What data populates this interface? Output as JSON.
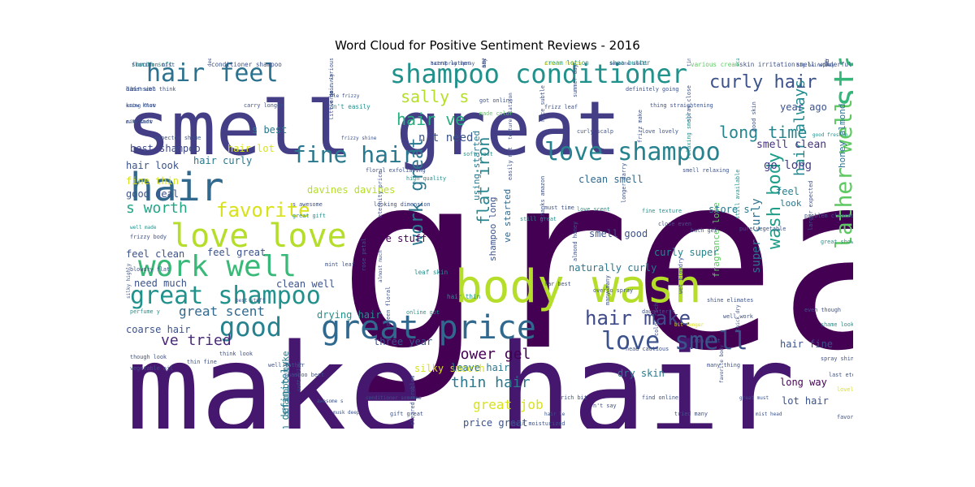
{
  "chart_data": {
    "type": "wordcloud",
    "title": "Word Cloud for Positive Sentiment Reviews - 2016",
    "words": [
      {
        "text": "great",
        "weight": 100,
        "color": "#440154"
      },
      {
        "text": "make hair",
        "weight": 92,
        "color": "#46176e"
      },
      {
        "text": "smell great",
        "weight": 72,
        "color": "#433e85"
      },
      {
        "text": "body wash",
        "weight": 48,
        "color": "#b5de2b"
      },
      {
        "text": "hair",
        "weight": 38,
        "color": "#31688e"
      },
      {
        "text": "shampoo conditioner",
        "weight": 30,
        "color": "#21918c"
      },
      {
        "text": "started using",
        "weight": 30,
        "color": "#35b779"
      },
      {
        "text": "great price",
        "weight": 26,
        "color": "#31688e"
      },
      {
        "text": "love love",
        "weight": 26,
        "color": "#b5de2b"
      },
      {
        "text": "work well",
        "weight": 24,
        "color": "#38b977"
      },
      {
        "text": "hair feel",
        "weight": 22,
        "color": "#2c728e"
      },
      {
        "text": "love shampoo",
        "weight": 22,
        "color": "#26828e"
      },
      {
        "text": "fine hair",
        "weight": 20,
        "color": "#2a788e"
      },
      {
        "text": "great shampoo",
        "weight": 20,
        "color": "#21918c"
      },
      {
        "text": "lather well",
        "weight": 22,
        "color": "#5ec962"
      },
      {
        "text": "love smell",
        "weight": 20,
        "color": "#3b528b"
      },
      {
        "text": "good",
        "weight": 22,
        "color": "#26828e"
      },
      {
        "text": "work great",
        "weight": 16,
        "color": "#2a788e"
      },
      {
        "text": "hair make",
        "weight": 16,
        "color": "#3e4a89"
      },
      {
        "text": "wash body",
        "weight": 16,
        "color": "#1f9e89"
      },
      {
        "text": "favorite",
        "weight": 18,
        "color": "#d8e219"
      },
      {
        "text": "curly hair",
        "weight": 14,
        "color": "#3b528b"
      },
      {
        "text": "long time",
        "weight": 14,
        "color": "#25858e"
      },
      {
        "text": "flat iron",
        "weight": 12,
        "color": "#25858e"
      },
      {
        "text": "s worth",
        "weight": 13,
        "color": "#21a685"
      },
      {
        "text": "sally s",
        "weight": 14,
        "color": "#b5de2b"
      },
      {
        "text": "hair ve",
        "weight": 14,
        "color": "#27ad81"
      },
      {
        "text": "hair always",
        "weight": 13,
        "color": "#23898e"
      },
      {
        "text": "shower gel",
        "weight": 13,
        "color": "#440154"
      },
      {
        "text": "thin hair",
        "weight": 13,
        "color": "#2a788e"
      },
      {
        "text": "great job",
        "weight": 12,
        "color": "#d8e219"
      },
      {
        "text": "ve tried",
        "weight": 13,
        "color": "#482878"
      },
      {
        "text": "great scent",
        "weight": 12,
        "color": "#31688e"
      },
      {
        "text": "super curly",
        "weight": 10,
        "color": "#2c728e"
      },
      {
        "text": "n't need",
        "weight": 10,
        "color": "#3b528b"
      },
      {
        "text": "smell clean",
        "weight": 9,
        "color": "#46337e"
      },
      {
        "text": "best shampoo",
        "weight": 8,
        "color": "#3e4a89"
      },
      {
        "text": "hair lot",
        "weight": 8,
        "color": "#d8e219"
      },
      {
        "text": "hair curly",
        "weight": 8,
        "color": "#2a788e"
      },
      {
        "text": "hair look",
        "weight": 8,
        "color": "#3b528b"
      },
      {
        "text": "fine thin",
        "weight": 8,
        "color": "#d8e219"
      },
      {
        "text": "good deal",
        "weight": 8,
        "color": "#3b528b"
      },
      {
        "text": "davines davines",
        "weight": 8,
        "color": "#b5de2b"
      },
      {
        "text": "clean smell",
        "weight": 8,
        "color": "#31688e"
      },
      {
        "text": "go long",
        "weight": 9,
        "color": "#433e85"
      },
      {
        "text": "year ago",
        "weight": 8,
        "color": "#3b528b"
      },
      {
        "text": "honey almond",
        "weight": 7,
        "color": "#2c728e"
      },
      {
        "text": "fragrance love",
        "weight": 7,
        "color": "#5ec962"
      },
      {
        "text": "feel",
        "weight": 8,
        "color": "#26828e"
      },
      {
        "text": "look",
        "weight": 7,
        "color": "#2a788e"
      },
      {
        "text": "store s",
        "weight": 8,
        "color": "#2a788e"
      },
      {
        "text": "smell good",
        "weight": 8,
        "color": "#3b528b"
      },
      {
        "text": "love stuff",
        "weight": 7,
        "color": "#440154"
      },
      {
        "text": "feel clean",
        "weight": 8,
        "color": "#3b528b"
      },
      {
        "text": "feel great",
        "weight": 8,
        "color": "#3b528b"
      },
      {
        "text": "need much",
        "weight": 8,
        "color": "#3b528b"
      },
      {
        "text": "clean well",
        "weight": 8,
        "color": "#3b528b"
      },
      {
        "text": "drying hair",
        "weight": 8,
        "color": "#21918c"
      },
      {
        "text": "coarse hair",
        "weight": 8,
        "color": "#3b528b"
      },
      {
        "text": "naturally curly",
        "weight": 8,
        "color": "#2a788e"
      },
      {
        "text": "curly super",
        "weight": 8,
        "color": "#25858e"
      },
      {
        "text": "hair fine",
        "weight": 8,
        "color": "#3b528b"
      },
      {
        "text": "silky smooth",
        "weight": 8,
        "color": "#d8e219"
      },
      {
        "text": "three year",
        "weight": 8,
        "color": "#3b528b"
      },
      {
        "text": "leave hair",
        "weight": 8,
        "color": "#2a788e"
      },
      {
        "text": "dry skin",
        "weight": 8,
        "color": "#2a788e"
      },
      {
        "text": "long way",
        "weight": 8,
        "color": "#440154"
      },
      {
        "text": "lot hair",
        "weight": 8,
        "color": "#3b528b"
      },
      {
        "text": "price great",
        "weight": 8,
        "color": "#3b528b"
      },
      {
        "text": "m definitely",
        "weight": 8,
        "color": "#2a788e"
      },
      {
        "text": "shampoo make",
        "weight": 7,
        "color": "#2a788e"
      },
      {
        "text": "ve started",
        "weight": 7,
        "color": "#31688e"
      },
      {
        "text": "shampoo long",
        "weight": 7,
        "color": "#3b528b"
      },
      {
        "text": "using started",
        "weight": 7,
        "color": "#2a788e"
      },
      {
        "text": "s best",
        "weight": 8,
        "color": "#2a788e"
      },
      {
        "text": "smooth soft",
        "weight": 5,
        "color": "#21918c"
      },
      {
        "text": "conditioner shampoo",
        "weight": 5,
        "color": "#3b528b"
      },
      {
        "text": "scent lather",
        "weight": 4,
        "color": "#3b528b"
      },
      {
        "text": "amazon thank",
        "weight": 5,
        "color": "#3b528b"
      },
      {
        "text": "cream lotion",
        "weight": 5,
        "color": "#21918c"
      },
      {
        "text": "shea butter",
        "weight": 5,
        "color": "#21918c"
      },
      {
        "text": "various cream",
        "weight": 5,
        "color": "#5ec962"
      },
      {
        "text": "skin irritation",
        "weight": 5,
        "color": "#3b528b"
      },
      {
        "text": "smell wonderful",
        "weight": 5,
        "color": "#3b528b"
      },
      {
        "text": "well tried",
        "weight": 5,
        "color": "#3b528b"
      },
      {
        "text": "hair wet",
        "weight": 5,
        "color": "#3b528b"
      },
      {
        "text": "know know",
        "weight": 4,
        "color": "#3b528b"
      },
      {
        "text": "n't know",
        "weight": 4,
        "color": "#3b528b"
      },
      {
        "text": "hair various",
        "weight": 4,
        "color": "#3b528b"
      },
      {
        "text": "n't easily",
        "weight": 5,
        "color": "#21918c"
      },
      {
        "text": "little go",
        "weight": 4,
        "color": "#3b528b"
      },
      {
        "text": "got online",
        "weight": 4,
        "color": "#3b528b"
      },
      {
        "text": "made color",
        "weight": 4,
        "color": "#5ec962"
      },
      {
        "text": "frizz leaf",
        "weight": 4,
        "color": "#3b528b"
      },
      {
        "text": "nice subtle",
        "weight": 4,
        "color": "#3b528b"
      },
      {
        "text": "summer day",
        "weight": 4,
        "color": "#3b528b"
      },
      {
        "text": "curly scalp",
        "weight": 4,
        "color": "#3b528b"
      },
      {
        "text": "love lovely",
        "weight": 4,
        "color": "#3b528b"
      },
      {
        "text": "frizz make",
        "weight": 4,
        "color": "#3b528b"
      },
      {
        "text": "spray close",
        "weight": 4,
        "color": "#3b528b"
      },
      {
        "text": "relaxing smell",
        "weight": 4,
        "color": "#21918c"
      },
      {
        "text": "smell relaxing",
        "weight": 4,
        "color": "#3b528b"
      },
      {
        "text": "good skin",
        "weight": 4,
        "color": "#3b528b"
      },
      {
        "text": "good freshen",
        "weight": 3,
        "color": "#21918c"
      },
      {
        "text": "well made",
        "weight": 3,
        "color": "#21918c"
      },
      {
        "text": "frizzy body",
        "weight": 4,
        "color": "#3b528b"
      },
      {
        "text": "s awesome",
        "weight": 4,
        "color": "#3b528b"
      },
      {
        "text": "great gift",
        "weight": 4,
        "color": "#21918c"
      },
      {
        "text": "looking dimension",
        "weight": 4,
        "color": "#3b528b"
      },
      {
        "text": "eternity price",
        "weight": 4,
        "color": "#3b528b"
      },
      {
        "text": "must time",
        "weight": 4,
        "color": "#3b528b"
      },
      {
        "text": "thanks amazon",
        "weight": 4,
        "color": "#3b528b"
      },
      {
        "text": "love scent",
        "weight": 4,
        "color": "#21918c"
      },
      {
        "text": "longer carry",
        "weight": 4,
        "color": "#3b528b"
      },
      {
        "text": "fine texture",
        "weight": 4,
        "color": "#21918c"
      },
      {
        "text": "close even",
        "weight": 4,
        "color": "#3b528b"
      },
      {
        "text": "bath gel",
        "weight": 4,
        "color": "#3b528b"
      },
      {
        "text": "still available",
        "weight": 4,
        "color": "#21918c"
      },
      {
        "text": "pure vegetable",
        "weight": 4,
        "color": "#3b528b"
      },
      {
        "text": "problem cleared",
        "weight": 4,
        "color": "#3b528b"
      },
      {
        "text": "larger expected",
        "weight": 4,
        "color": "#3b528b"
      },
      {
        "text": "great shower",
        "weight": 4,
        "color": "#21918c"
      },
      {
        "text": "blowdry flat",
        "weight": 4,
        "color": "#3b528b"
      },
      {
        "text": "silky highly",
        "weight": 3,
        "color": "#3b528b"
      },
      {
        "text": "perfume y",
        "weight": 4,
        "color": "#21918c"
      },
      {
        "text": "best stuff",
        "weight": 3,
        "color": "#3b528b"
      },
      {
        "text": "mint leaf",
        "weight": 4,
        "color": "#3b528b"
      },
      {
        "text": "rose petal",
        "weight": 4,
        "color": "#3b528b"
      },
      {
        "text": "almost much",
        "weight": 3,
        "color": "#3b528b"
      },
      {
        "text": "leaf skin",
        "weight": 5,
        "color": "#21918c"
      },
      {
        "text": "hair thin",
        "weight": 5,
        "color": "#21918c"
      },
      {
        "text": "overdo spray",
        "weight": 4,
        "color": "#3b528b"
      },
      {
        "text": "many many",
        "weight": 4,
        "color": "#3b528b"
      },
      {
        "text": "daughter s",
        "weight": 4,
        "color": "#3b528b"
      },
      {
        "text": "bit longer",
        "weight": 3,
        "color": "#d8e219"
      },
      {
        "text": "color rich",
        "weight": 4,
        "color": "#3b528b"
      },
      {
        "text": "iron flat",
        "weight": 4,
        "color": "#3b528b"
      },
      {
        "text": "well work",
        "weight": 4,
        "color": "#3b528b"
      },
      {
        "text": "thick dry",
        "weight": 3,
        "color": "#3b528b"
      },
      {
        "text": "even though",
        "weight": 4,
        "color": "#3b528b"
      },
      {
        "text": "shame looking",
        "weight": 4,
        "color": "#21918c"
      },
      {
        "text": "though look",
        "weight": 4,
        "color": "#3b528b"
      },
      {
        "text": "vegetable oil",
        "weight": 4,
        "color": "#3b528b"
      },
      {
        "text": "thin fine",
        "weight": 4,
        "color": "#3b528b"
      },
      {
        "text": "think look",
        "weight": 4,
        "color": "#3b528b"
      },
      {
        "text": "well lather",
        "weight": 4,
        "color": "#3b528b"
      },
      {
        "text": "shampoo best",
        "weight": 4,
        "color": "#3b528b"
      },
      {
        "text": "soft silky",
        "weight": 3,
        "color": "#3b528b"
      },
      {
        "text": "awesome s",
        "weight": 3,
        "color": "#3b528b"
      },
      {
        "text": "musk deep",
        "weight": 3,
        "color": "#3b528b"
      },
      {
        "text": "conditioner someone",
        "weight": 3,
        "color": "#3b528b"
      },
      {
        "text": "gift great",
        "weight": 4,
        "color": "#3b528b"
      },
      {
        "text": "cleared problem",
        "weight": 4,
        "color": "#3b528b"
      },
      {
        "text": "hair moisturized",
        "weight": 4,
        "color": "#3b528b"
      },
      {
        "text": "hair le",
        "weight": 3,
        "color": "#3b528b"
      },
      {
        "text": "rich bit",
        "weight": 4,
        "color": "#3b528b"
      },
      {
        "text": "n't say",
        "weight": 4,
        "color": "#3b528b"
      },
      {
        "text": "find online",
        "weight": 4,
        "color": "#3b528b"
      },
      {
        "text": "tried many",
        "weight": 4,
        "color": "#3b528b"
      },
      {
        "text": "many thing",
        "weight": 4,
        "color": "#3b528b"
      },
      {
        "text": "favorite body",
        "weight": 3,
        "color": "#3b528b"
      },
      {
        "text": "great must",
        "weight": 3,
        "color": "#3b528b"
      },
      {
        "text": "mist head",
        "weight": 3,
        "color": "#3b528b"
      },
      {
        "text": "spray shine",
        "weight": 4,
        "color": "#3b528b"
      },
      {
        "text": "last eternity",
        "weight": 4,
        "color": "#3b528b"
      },
      {
        "text": "lovely daughter",
        "weight": 4,
        "color": "#d8e219"
      },
      {
        "text": "favorite shampoo",
        "weight": 4,
        "color": "#3b528b"
      },
      {
        "text": "shine elimates",
        "weight": 4,
        "color": "#3b528b"
      },
      {
        "text": "head cautious",
        "weight": 4,
        "color": "#3b528b"
      },
      {
        "text": "wet blowdry",
        "weight": 4,
        "color": "#3b528b"
      },
      {
        "text": "almond honey",
        "weight": 4,
        "color": "#3b528b"
      },
      {
        "text": "far best",
        "weight": 4,
        "color": "#3b528b"
      },
      {
        "text": "still great",
        "weight": 4,
        "color": "#21918c"
      },
      {
        "text": "easily n't",
        "weight": 4,
        "color": "#3b528b"
      },
      {
        "text": "high quality",
        "weight": 4,
        "color": "#21918c"
      },
      {
        "text": "floral exfoliating",
        "weight": 4,
        "color": "#3b528b"
      },
      {
        "text": "thing straightening",
        "weight": 4,
        "color": "#3b528b"
      },
      {
        "text": "definitely going",
        "weight": 4,
        "color": "#3b528b"
      },
      {
        "text": "texture flatiron",
        "weight": 3,
        "color": "#3b528b"
      },
      {
        "text": "soft last",
        "weight": 4,
        "color": "#21918c"
      },
      {
        "text": "frizzy shine",
        "weight": 3,
        "color": "#3b528b"
      },
      {
        "text": "carry longer",
        "weight": 4,
        "color": "#3b528b"
      },
      {
        "text": "expected shame",
        "weight": 4,
        "color": "#3b528b"
      },
      {
        "text": "green floral",
        "weight": 4,
        "color": "#3b528b"
      },
      {
        "text": "online got",
        "weight": 4,
        "color": "#21918c"
      },
      {
        "text": "flatiron mist",
        "weight": 4,
        "color": "#3b528b"
      },
      {
        "text": "deep scent",
        "weight": 3,
        "color": "#3b528b"
      },
      {
        "text": "hairspray spray",
        "weight": 3,
        "color": "#3b528b"
      },
      {
        "text": "say n't",
        "weight": 4,
        "color": "#3b528b"
      },
      {
        "text": "almost frizzy",
        "weight": 3,
        "color": "#d8e219"
      },
      {
        "text": "someone smell",
        "weight": 3,
        "color": "#3b528b"
      },
      {
        "text": "time straighten",
        "weight": 3,
        "color": "#3b528b"
      },
      {
        "text": "scalp frizzy",
        "weight": 3,
        "color": "#21918c"
      },
      {
        "text": "big hairspray",
        "weight": 3,
        "color": "#3b528b"
      },
      {
        "text": "straightening iron",
        "weight": 3,
        "color": "#3b528b"
      },
      {
        "text": "dimension think",
        "weight": 4,
        "color": "#3b528b"
      },
      {
        "text": "using flat",
        "weight": 3,
        "color": "#3b528b"
      },
      {
        "text": "make soft",
        "weight": 3,
        "color": "#3b528b"
      },
      {
        "text": "le frizzy",
        "weight": 3,
        "color": "#3b528b"
      },
      {
        "text": "overdo curly",
        "weight": 3,
        "color": "#3b528b"
      }
    ]
  }
}
